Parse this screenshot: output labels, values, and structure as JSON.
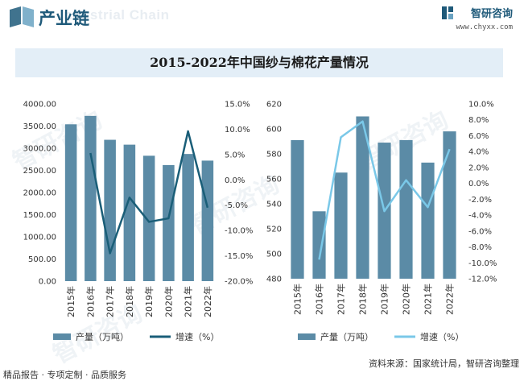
{
  "header": {
    "section_title": "产业链",
    "watermark_text": "Industrial Chain",
    "brand_name": "智研咨询",
    "brand_url": "www.chyxx.com"
  },
  "chart_title": "2015-2022年中国纱与棉花产量情况",
  "footer": {
    "left": "精品报告 · 专项定制 · 品质服务",
    "source": "资料来源：国家统计局，智研咨询整理"
  },
  "watermark": "智研咨询",
  "colors": {
    "bar": "#5b8ba6",
    "line_left": "#1a5e78",
    "line_right": "#7ac8e8",
    "accent": "#1f5a7a"
  },
  "chart_data": [
    {
      "type": "bar",
      "subject": "纱",
      "categories": [
        "2015年",
        "2016年",
        "2017年",
        "2018年",
        "2019年",
        "2020年",
        "2021年",
        "2022年"
      ],
      "series": [
        {
          "name": "产量（万吨）",
          "axis": "left",
          "kind": "bar",
          "values": [
            3540,
            3730,
            3190,
            3080,
            2830,
            2620,
            2870,
            2720
          ]
        },
        {
          "name": "增速（%）",
          "axis": "right",
          "kind": "line",
          "values": [
            null,
            5.3,
            -14.5,
            -3.5,
            -8.3,
            -7.6,
            9.6,
            -5.5
          ]
        }
      ],
      "y_left": {
        "min": 0,
        "max": 4000,
        "step": 500,
        "ticks": [
          "0.00",
          "500.00",
          "1000.00",
          "1500.00",
          "2000.00",
          "2500.00",
          "3000.00",
          "3500.00",
          "4000.00"
        ]
      },
      "y_right": {
        "min": -20,
        "max": 15,
        "step": 5,
        "ticks": [
          "-20.0%",
          "-15.0%",
          "-10.0%",
          "-5.0%",
          "0.0%",
          "5.0%",
          "10.0%",
          "15.0%"
        ]
      },
      "legend": [
        "产量（万吨）",
        "增速（%）"
      ]
    },
    {
      "type": "bar",
      "subject": "棉花",
      "categories": [
        "2015年",
        "2016年",
        "2017年",
        "2018年",
        "2019年",
        "2020年",
        "2021年",
        "2022年"
      ],
      "series": [
        {
          "name": "产量（万吨）",
          "axis": "left",
          "kind": "bar",
          "values": [
            591,
            534,
            565,
            610,
            589,
            591,
            573,
            598
          ]
        },
        {
          "name": "增速（%）",
          "axis": "right",
          "kind": "line",
          "values": [
            null,
            -9.6,
            5.8,
            7.8,
            -3.5,
            0.4,
            -3.0,
            4.3
          ]
        }
      ],
      "y_left": {
        "min": 480,
        "max": 620,
        "step": 20,
        "ticks": [
          "480",
          "500",
          "520",
          "540",
          "560",
          "580",
          "600",
          "620"
        ]
      },
      "y_right": {
        "min": -12,
        "max": 10,
        "step": 2,
        "ticks": [
          "-12.0%",
          "-10.0%",
          "-8.0%",
          "-6.0%",
          "-4.0%",
          "-2.0%",
          "0.0%",
          "2.0%",
          "4.0%",
          "6.0%",
          "8.0%",
          "10.0%"
        ]
      },
      "legend": [
        "产量（万吨）",
        "增速（%）"
      ]
    }
  ]
}
